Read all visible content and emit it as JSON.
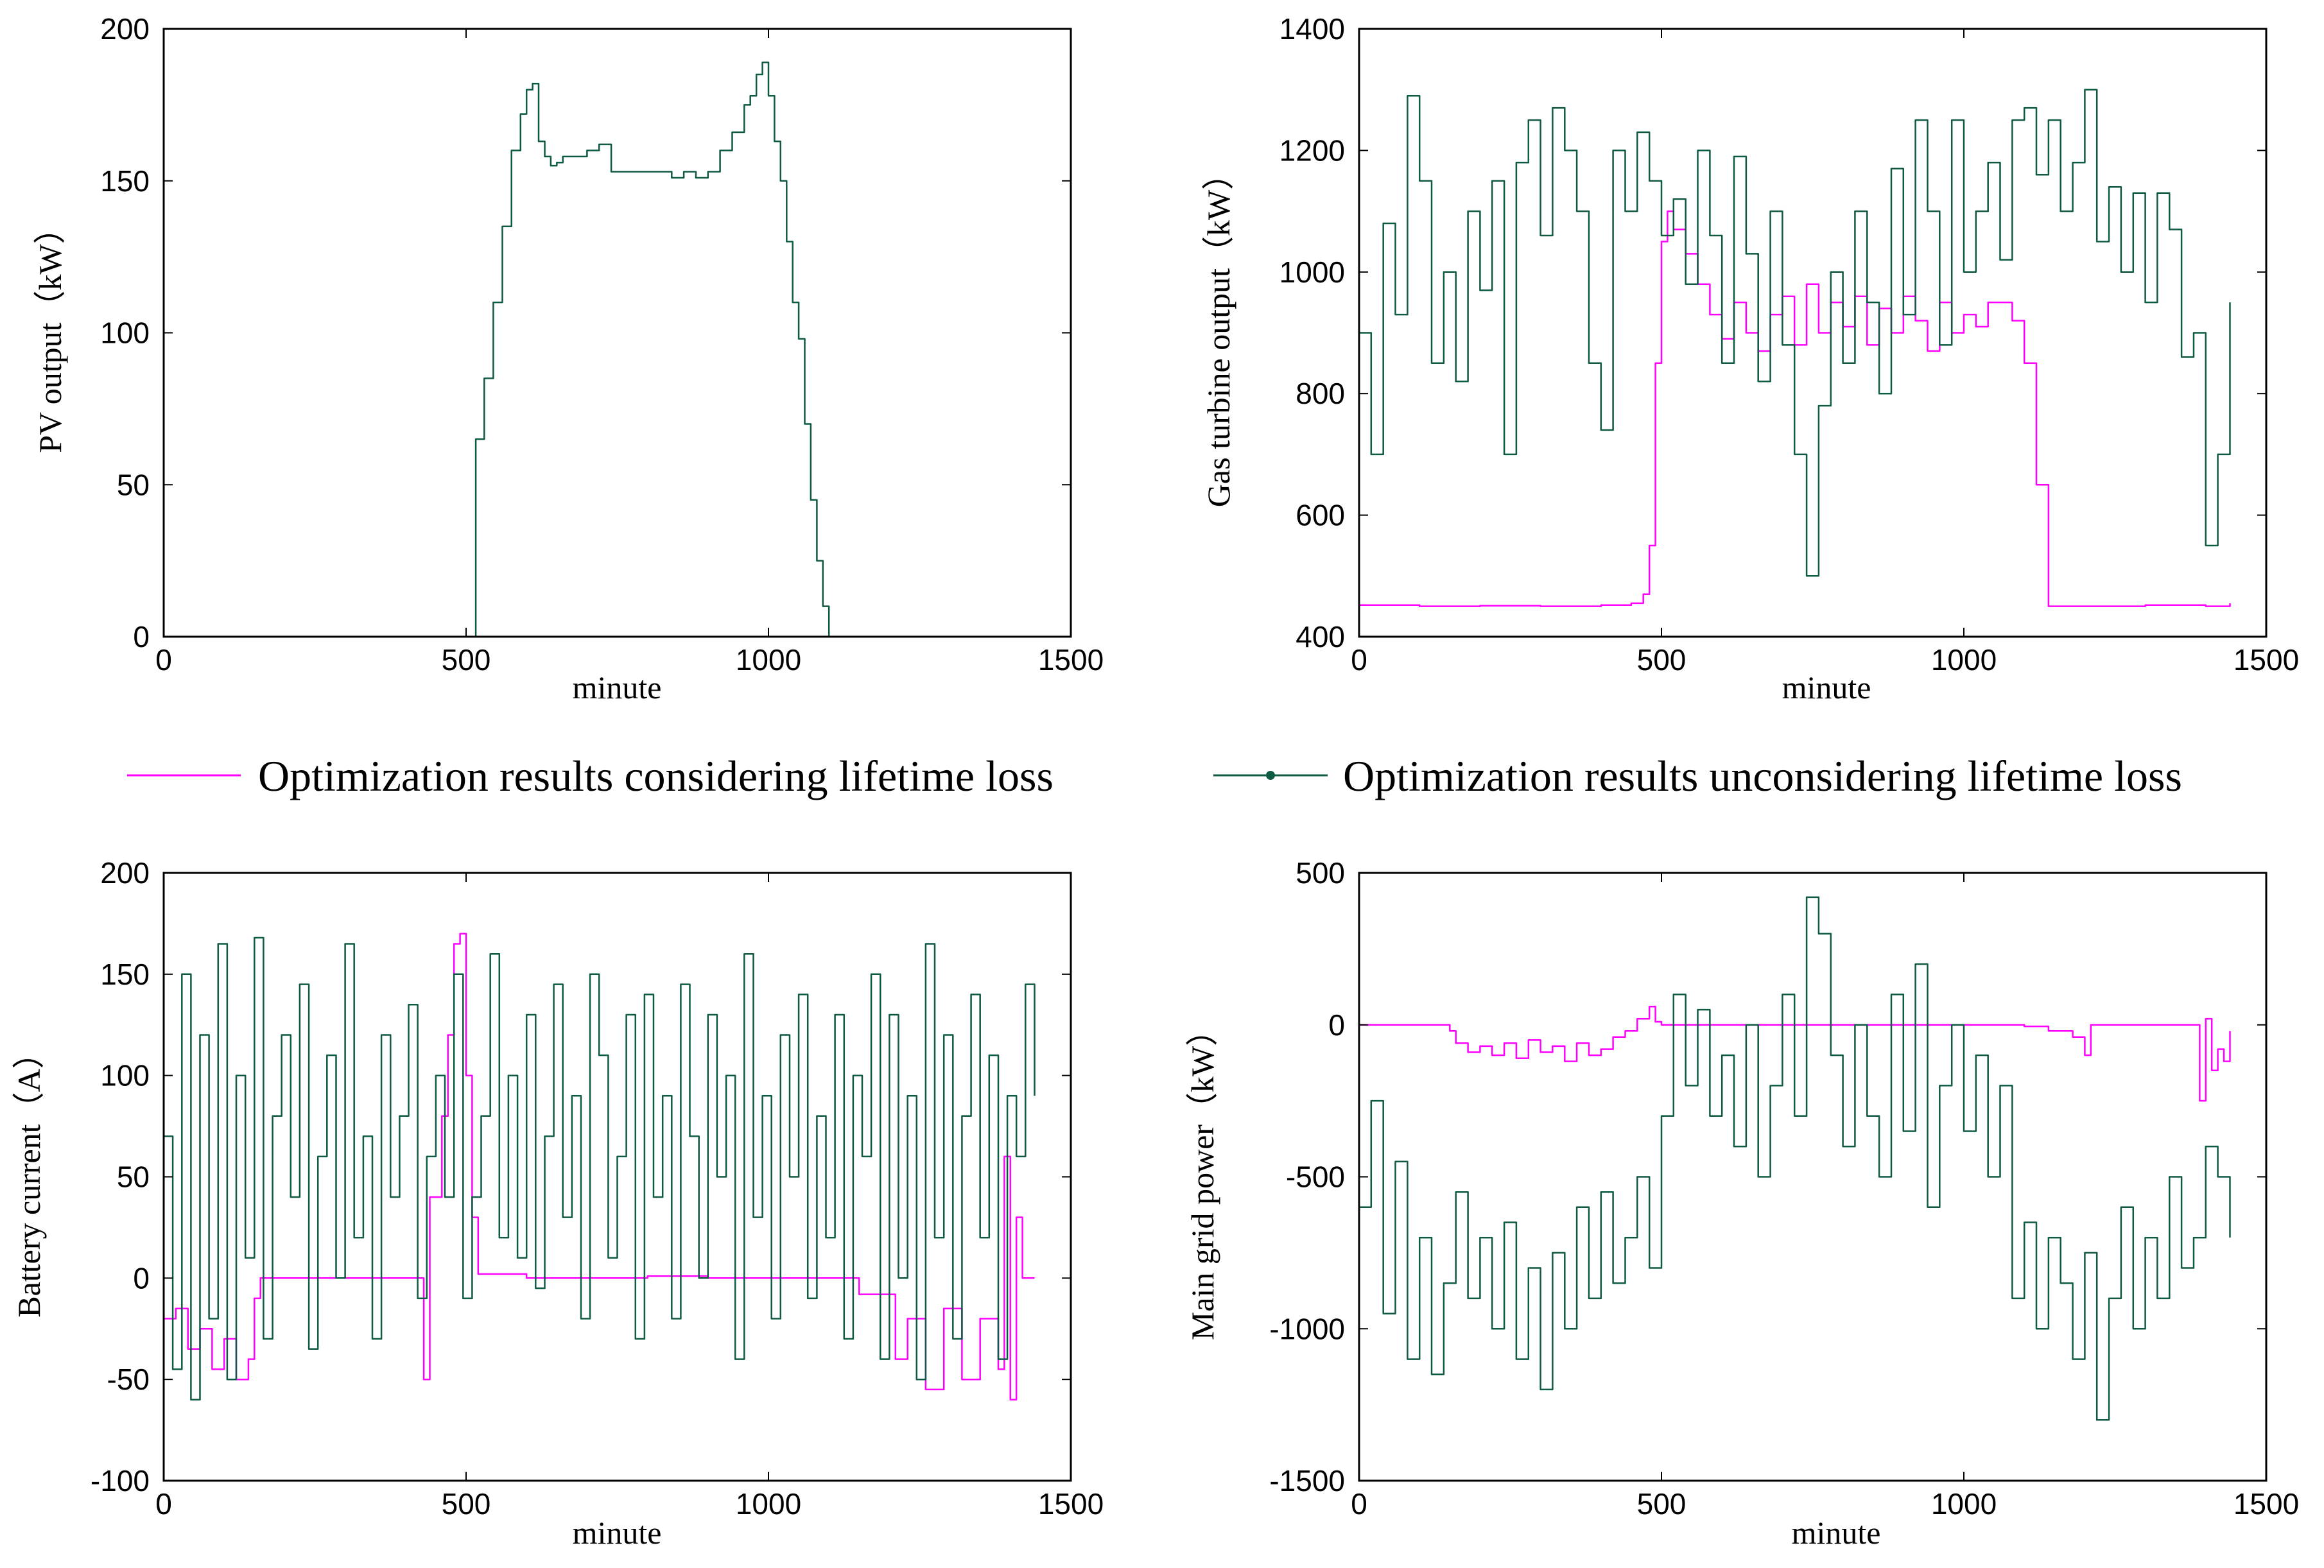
{
  "colors": {
    "considering": "#ff00ff",
    "unconsidering": "#0f5a45",
    "axis": "#000000"
  },
  "legend": {
    "considering_label": "Optimization results considering lifetime loss",
    "unconsidering_label": "Optimization results unconsidering lifetime loss"
  },
  "chart_data": [
    {
      "type": "line",
      "id": "pv",
      "title": "",
      "xlabel": "minute",
      "ylabel": "PV output（kW）",
      "xlim": [
        0,
        1500
      ],
      "ylim": [
        0,
        200
      ],
      "xticks": [
        0,
        500,
        1000,
        1500
      ],
      "yticks": [
        0,
        50,
        100,
        150,
        200
      ],
      "series": [
        {
          "name": "Optimization results unconsidering lifetime loss",
          "x": [
            0,
            515,
            516,
            530,
            545,
            560,
            575,
            590,
            600,
            610,
            620,
            630,
            640,
            650,
            660,
            680,
            700,
            720,
            740,
            760,
            780,
            800,
            820,
            840,
            860,
            880,
            900,
            920,
            940,
            960,
            970,
            980,
            990,
            1000,
            1010,
            1020,
            1030,
            1040,
            1050,
            1060,
            1070,
            1080,
            1090,
            1100,
            1110,
            1111,
            1440
          ],
          "y": [
            0,
            0,
            65,
            85,
            110,
            135,
            160,
            172,
            180,
            182,
            163,
            158,
            155,
            156,
            158,
            158,
            160,
            162,
            153,
            153,
            153,
            153,
            153,
            151,
            153,
            151,
            153,
            160,
            166,
            175,
            178,
            185,
            189,
            178,
            163,
            150,
            130,
            110,
            98,
            70,
            45,
            25,
            10,
            0,
            0,
            0,
            0
          ]
        }
      ]
    },
    {
      "type": "line",
      "id": "gt",
      "title": "",
      "xlabel": "minute",
      "ylabel": "Gas turbine output（kW）",
      "xlim": [
        0,
        1500
      ],
      "ylim": [
        400,
        1400
      ],
      "xticks": [
        0,
        500,
        1000,
        1500
      ],
      "yticks": [
        400,
        600,
        800,
        1000,
        1200,
        1400
      ],
      "series": [
        {
          "name": "Optimization results considering lifetime loss",
          "x": [
            0,
            100,
            200,
            300,
            400,
            450,
            470,
            480,
            490,
            500,
            510,
            520,
            540,
            560,
            580,
            600,
            620,
            640,
            660,
            680,
            700,
            720,
            740,
            760,
            780,
            800,
            820,
            840,
            860,
            880,
            900,
            920,
            940,
            960,
            980,
            1000,
            1020,
            1040,
            1060,
            1080,
            1100,
            1120,
            1140,
            1160,
            1200,
            1300,
            1400,
            1440
          ],
          "y": [
            452,
            450,
            451,
            450,
            452,
            455,
            470,
            550,
            850,
            1050,
            1100,
            1070,
            1030,
            980,
            930,
            890,
            950,
            900,
            870,
            930,
            960,
            880,
            980,
            900,
            950,
            910,
            960,
            880,
            940,
            900,
            960,
            920,
            870,
            950,
            900,
            930,
            910,
            950,
            950,
            920,
            850,
            650,
            450,
            450,
            450,
            452,
            450,
            455
          ]
        },
        {
          "name": "Optimization results unconsidering lifetime loss",
          "x": [
            0,
            20,
            40,
            60,
            80,
            100,
            120,
            140,
            160,
            180,
            200,
            220,
            240,
            260,
            280,
            300,
            320,
            340,
            360,
            380,
            400,
            420,
            440,
            460,
            480,
            500,
            520,
            540,
            560,
            580,
            600,
            620,
            640,
            660,
            680,
            700,
            720,
            740,
            760,
            780,
            800,
            820,
            840,
            860,
            880,
            900,
            920,
            940,
            960,
            980,
            1000,
            1020,
            1040,
            1060,
            1080,
            1100,
            1120,
            1140,
            1160,
            1180,
            1200,
            1220,
            1240,
            1260,
            1280,
            1300,
            1320,
            1340,
            1360,
            1380,
            1400,
            1420,
            1440
          ],
          "y": [
            900,
            700,
            1080,
            930,
            1290,
            1150,
            850,
            1000,
            820,
            1100,
            970,
            1150,
            700,
            1180,
            1250,
            1060,
            1270,
            1200,
            1100,
            850,
            740,
            1200,
            1100,
            1230,
            1150,
            1060,
            1120,
            980,
            1200,
            1060,
            850,
            1190,
            1030,
            820,
            1100,
            880,
            700,
            500,
            780,
            1000,
            850,
            1100,
            950,
            800,
            1170,
            930,
            1250,
            1100,
            880,
            1250,
            1000,
            1100,
            1180,
            1020,
            1250,
            1270,
            1160,
            1250,
            1100,
            1180,
            1300,
            1050,
            1140,
            1000,
            1130,
            950,
            1130,
            1070,
            860,
            900,
            550,
            700,
            950
          ]
        }
      ]
    },
    {
      "type": "line",
      "id": "bat",
      "title": "",
      "xlabel": "minute",
      "ylabel": "Battery current（A）",
      "xlim": [
        0,
        1500
      ],
      "ylim": [
        -100,
        200
      ],
      "xticks": [
        0,
        500,
        1000,
        1500
      ],
      "yticks": [
        -100,
        -50,
        0,
        50,
        100,
        150,
        200
      ],
      "series": [
        {
          "name": "Optimization results considering lifetime loss",
          "x": [
            0,
            20,
            40,
            60,
            80,
            100,
            120,
            140,
            150,
            160,
            200,
            300,
            400,
            420,
            430,
            440,
            460,
            470,
            480,
            490,
            500,
            510,
            520,
            600,
            700,
            800,
            900,
            1000,
            1100,
            1140,
            1150,
            1200,
            1210,
            1230,
            1260,
            1290,
            1320,
            1350,
            1380,
            1390,
            1400,
            1410,
            1420,
            1430,
            1440
          ],
          "y": [
            -20,
            -15,
            -35,
            -25,
            -45,
            -30,
            -50,
            -40,
            -10,
            0,
            0,
            0,
            0,
            0,
            -50,
            40,
            80,
            120,
            165,
            170,
            100,
            30,
            2,
            0,
            0,
            1,
            0,
            0,
            0,
            0,
            -8,
            -8,
            -40,
            -20,
            -55,
            -15,
            -50,
            -20,
            -45,
            60,
            -60,
            30,
            0,
            0,
            0
          ]
        },
        {
          "name": "Optimization results unconsidering lifetime loss",
          "x": [
            0,
            15,
            30,
            45,
            60,
            75,
            90,
            105,
            120,
            135,
            150,
            165,
            180,
            195,
            210,
            225,
            240,
            255,
            270,
            285,
            300,
            315,
            330,
            345,
            360,
            375,
            390,
            405,
            420,
            435,
            450,
            465,
            480,
            495,
            510,
            525,
            540,
            555,
            570,
            585,
            600,
            615,
            630,
            645,
            660,
            675,
            690,
            705,
            720,
            735,
            750,
            765,
            780,
            795,
            810,
            825,
            840,
            855,
            870,
            885,
            900,
            915,
            930,
            945,
            960,
            975,
            990,
            1005,
            1020,
            1035,
            1050,
            1065,
            1080,
            1095,
            1110,
            1125,
            1140,
            1155,
            1170,
            1185,
            1200,
            1215,
            1230,
            1245,
            1260,
            1275,
            1290,
            1305,
            1320,
            1335,
            1350,
            1365,
            1380,
            1395,
            1410,
            1425,
            1440
          ],
          "y": [
            70,
            -45,
            150,
            -60,
            120,
            -20,
            165,
            -50,
            100,
            10,
            168,
            -30,
            80,
            120,
            40,
            145,
            -35,
            60,
            110,
            0,
            165,
            20,
            70,
            -30,
            120,
            40,
            80,
            135,
            -10,
            60,
            100,
            40,
            150,
            -10,
            40,
            80,
            160,
            20,
            100,
            10,
            130,
            -5,
            70,
            145,
            30,
            90,
            -20,
            150,
            110,
            10,
            60,
            130,
            -30,
            140,
            40,
            90,
            -20,
            145,
            70,
            0,
            130,
            50,
            100,
            -40,
            160,
            30,
            90,
            -20,
            120,
            50,
            140,
            -10,
            80,
            20,
            130,
            -30,
            100,
            60,
            150,
            -40,
            130,
            0,
            90,
            -50,
            165,
            20,
            120,
            -30,
            80,
            140,
            20,
            110,
            -40,
            90,
            60,
            145,
            90
          ]
        }
      ]
    },
    {
      "type": "line",
      "id": "grid",
      "title": "",
      "xlabel": "minute",
      "ylabel": "Main grid power（kW）",
      "xlim": [
        0,
        1500
      ],
      "ylim": [
        -1500,
        500
      ],
      "xticks": [
        0,
        500,
        1000,
        1500
      ],
      "yticks": [
        -1500,
        -1000,
        -500,
        0,
        500
      ],
      "series": [
        {
          "name": "Optimization results considering lifetime loss",
          "x": [
            0,
            100,
            140,
            150,
            160,
            180,
            200,
            220,
            240,
            260,
            280,
            300,
            320,
            340,
            360,
            380,
            400,
            420,
            440,
            460,
            480,
            490,
            500,
            520,
            600,
            700,
            800,
            900,
            1000,
            1050,
            1100,
            1140,
            1180,
            1200,
            1210,
            1250,
            1300,
            1350,
            1380,
            1390,
            1400,
            1410,
            1420,
            1430,
            1440
          ],
          "y": [
            0,
            0,
            0,
            -20,
            -60,
            -90,
            -70,
            -100,
            -60,
            -110,
            -50,
            -90,
            -70,
            -120,
            -60,
            -100,
            -80,
            -40,
            -20,
            20,
            60,
            10,
            0,
            0,
            0,
            0,
            0,
            0,
            0,
            0,
            -5,
            -20,
            -40,
            -100,
            0,
            0,
            0,
            0,
            0,
            -250,
            20,
            -150,
            -80,
            -120,
            -20
          ]
        },
        {
          "name": "Optimization results unconsidering lifetime loss",
          "x": [
            0,
            20,
            40,
            60,
            80,
            100,
            120,
            140,
            160,
            180,
            200,
            220,
            240,
            260,
            280,
            300,
            320,
            340,
            360,
            380,
            400,
            420,
            440,
            460,
            480,
            500,
            520,
            540,
            560,
            580,
            600,
            620,
            640,
            660,
            680,
            700,
            720,
            740,
            760,
            780,
            800,
            820,
            840,
            860,
            880,
            900,
            920,
            940,
            960,
            980,
            1000,
            1020,
            1040,
            1060,
            1080,
            1100,
            1120,
            1140,
            1160,
            1180,
            1200,
            1220,
            1240,
            1260,
            1280,
            1300,
            1320,
            1340,
            1360,
            1380,
            1400,
            1420,
            1440
          ],
          "y": [
            -600,
            -250,
            -950,
            -450,
            -1100,
            -700,
            -1150,
            -850,
            -550,
            -900,
            -700,
            -1000,
            -650,
            -1100,
            -800,
            -1200,
            -750,
            -1000,
            -600,
            -900,
            -550,
            -850,
            -700,
            -500,
            -800,
            -300,
            100,
            -200,
            50,
            -300,
            -100,
            -400,
            0,
            -500,
            -200,
            100,
            -300,
            420,
            300,
            -100,
            -400,
            0,
            -300,
            -500,
            100,
            -350,
            200,
            -600,
            -200,
            0,
            -350,
            -100,
            -500,
            -200,
            -900,
            -650,
            -1000,
            -700,
            -850,
            -1100,
            -750,
            -1300,
            -900,
            -600,
            -1000,
            -700,
            -900,
            -500,
            -800,
            -700,
            -400,
            -500,
            -700
          ]
        }
      ]
    }
  ]
}
